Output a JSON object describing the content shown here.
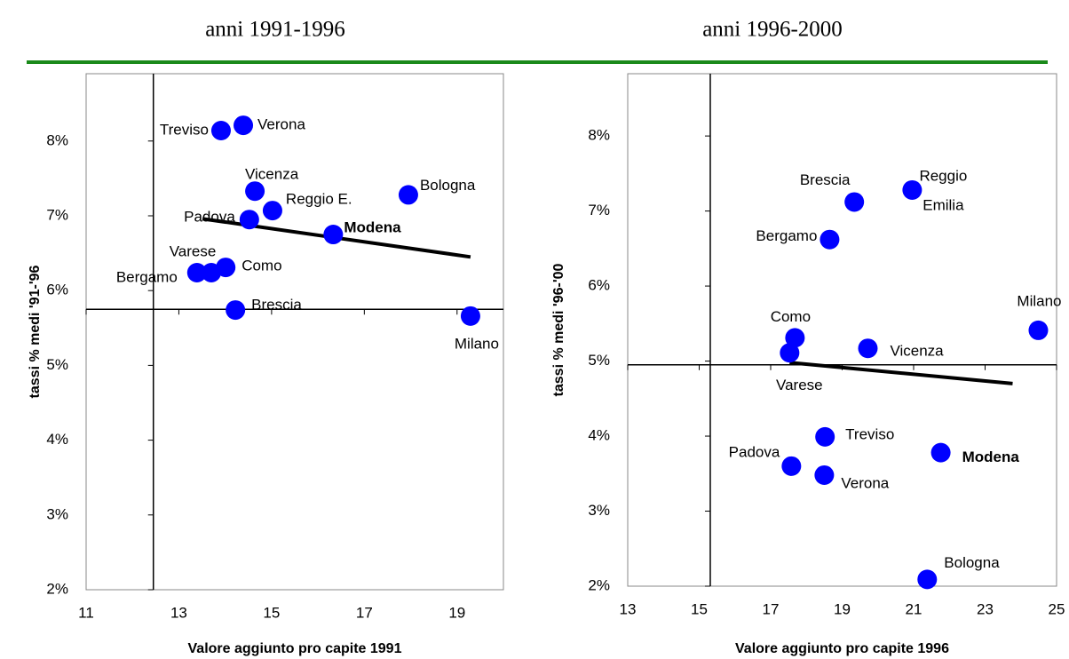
{
  "chart_data": [
    {
      "type": "scatter",
      "title": "anni 1991-1996",
      "x_label": "Valore aggiunto pro capite 1991",
      "y_label": "tassi % medi '91-'96",
      "labels": [
        "Treviso",
        "Verona",
        "Vicenza",
        "Bologna",
        "Reggio E.",
        "Padova",
        "Modena",
        "Bergamo",
        "Varese",
        "Como",
        "Brescia",
        "Milano"
      ],
      "x": [
        13.91,
        14.39,
        14.64,
        17.95,
        15.02,
        14.52,
        16.33,
        13.39,
        13.7,
        14.01,
        14.22,
        19.29
      ],
      "y": [
        8.14,
        8.21,
        7.33,
        7.28,
        7.07,
        6.95,
        6.75,
        6.24,
        6.24,
        6.31,
        5.74,
        5.66
      ],
      "highlight_index": 6,
      "color": "#0000ff",
      "trendline": {
        "x": [
          13.51,
          19.29
        ],
        "y": [
          6.96,
          6.45
        ]
      },
      "axis_cross": {
        "x": 12.45,
        "y": 5.75
      },
      "xlim": [
        11,
        20
      ],
      "xticks": [
        11,
        13,
        15,
        17,
        19
      ],
      "ylim": [
        2,
        8.9
      ],
      "yticks": [
        {
          "value": 2,
          "label": "2%"
        },
        {
          "value": 3,
          "label": "3%"
        },
        {
          "value": 4,
          "label": "4%"
        },
        {
          "value": 5,
          "label": "5%"
        },
        {
          "value": 6,
          "label": "6%"
        },
        {
          "value": 7,
          "label": "7%"
        },
        {
          "value": 8,
          "label": "8%"
        }
      ]
    },
    {
      "type": "scatter",
      "title": "anni 1996-2000",
      "x_label": "Valore aggiunto pro capite 1996",
      "y_label": "tassi % medi '96-'00",
      "labels": [
        "Brescia",
        [
          "Reggio",
          "Emilia"
        ],
        "Bergamo",
        "Milano",
        "Como",
        "Varese",
        "Vicenza",
        "Treviso",
        "Modena",
        "Padova",
        "Verona",
        "Bologna"
      ],
      "x": [
        19.34,
        20.96,
        18.65,
        24.49,
        17.68,
        17.53,
        19.72,
        18.52,
        21.76,
        17.58,
        18.5,
        21.38
      ],
      "y": [
        7.12,
        7.28,
        6.62,
        5.41,
        5.31,
        5.11,
        5.17,
        3.99,
        3.78,
        3.6,
        3.48,
        2.09
      ],
      "highlight_index": 8,
      "color": "#0000ff",
      "trendline": {
        "x": [
          17.53,
          23.77
        ],
        "y": [
          4.98,
          4.7
        ]
      },
      "axis_cross": {
        "x": 15.31,
        "y": 4.95
      },
      "xlim": [
        13,
        25
      ],
      "xticks": [
        13,
        15,
        17,
        19,
        21,
        23,
        25
      ],
      "ylim": [
        2,
        8.83
      ],
      "yticks": [
        {
          "value": 2,
          "label": "2%"
        },
        {
          "value": 3,
          "label": "3%"
        },
        {
          "value": 4,
          "label": "4%"
        },
        {
          "value": 5,
          "label": "5%"
        },
        {
          "value": 6,
          "label": "6%"
        },
        {
          "value": 7,
          "label": "7%"
        },
        {
          "value": 8,
          "label": "8%"
        }
      ]
    }
  ]
}
